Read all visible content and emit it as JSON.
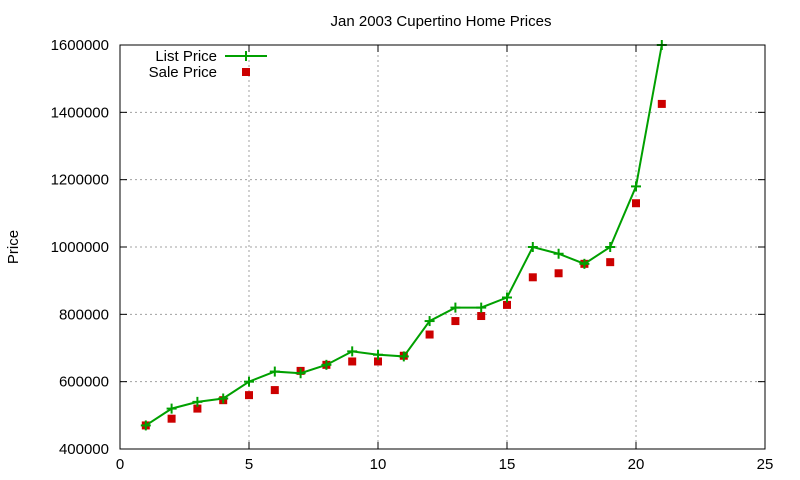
{
  "chart_data": {
    "type": "line",
    "title": "Jan 2003 Cupertino Home Prices",
    "xlabel": "",
    "ylabel": "Price",
    "xlim": [
      0,
      25
    ],
    "ylim": [
      400000,
      1600000
    ],
    "x_ticks": [
      0,
      5,
      10,
      15,
      20,
      25
    ],
    "y_ticks": [
      400000,
      600000,
      800000,
      1000000,
      1200000,
      1400000,
      1600000
    ],
    "grid": true,
    "legend_position": "top-left",
    "series": [
      {
        "name": "List Price",
        "type": "line",
        "marker": "plus",
        "color": "#00a000",
        "x": [
          1,
          2,
          3,
          4,
          5,
          6,
          7,
          8,
          9,
          10,
          11,
          12,
          13,
          14,
          15,
          16,
          17,
          18,
          19,
          20,
          21
        ],
        "values": [
          470000,
          520000,
          540000,
          550000,
          600000,
          630000,
          625000,
          650000,
          690000,
          680000,
          675000,
          780000,
          820000,
          820000,
          850000,
          1000000,
          980000,
          950000,
          1000000,
          1180000,
          1600000
        ]
      },
      {
        "name": "Sale Price",
        "type": "scatter",
        "marker": "square",
        "color": "#cc0000",
        "x": [
          1,
          2,
          3,
          4,
          5,
          6,
          7,
          8,
          9,
          10,
          11,
          12,
          13,
          14,
          15,
          16,
          17,
          18,
          19,
          20,
          21
        ],
        "values": [
          470000,
          490000,
          520000,
          545000,
          560000,
          575000,
          632000,
          650000,
          660000,
          660000,
          677000,
          740000,
          780000,
          795000,
          828000,
          910000,
          922000,
          950000,
          955000,
          1130000,
          1425000
        ]
      }
    ]
  }
}
